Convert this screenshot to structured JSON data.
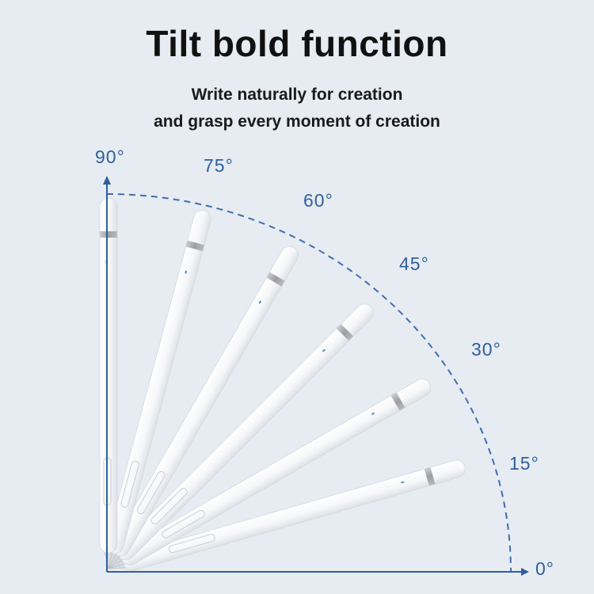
{
  "header": {
    "title": "Tilt bold function",
    "subtitle_line1": "Write naturally for creation",
    "subtitle_line2": "and grasp every moment of creation"
  },
  "angle_labels": [
    "90°",
    "75°",
    "60°",
    "45°",
    "30°",
    "15°",
    "0°"
  ],
  "pen_tilts_deg": [
    90,
    75,
    60,
    45,
    30,
    16
  ],
  "colors": {
    "background": "#e7ecf3",
    "arc": "#3f6fb0",
    "label": "#2f5f9e",
    "pen_body": "#fbfcfd",
    "pen_band": "#a9abaf",
    "indicator": "#3b8ee8"
  }
}
